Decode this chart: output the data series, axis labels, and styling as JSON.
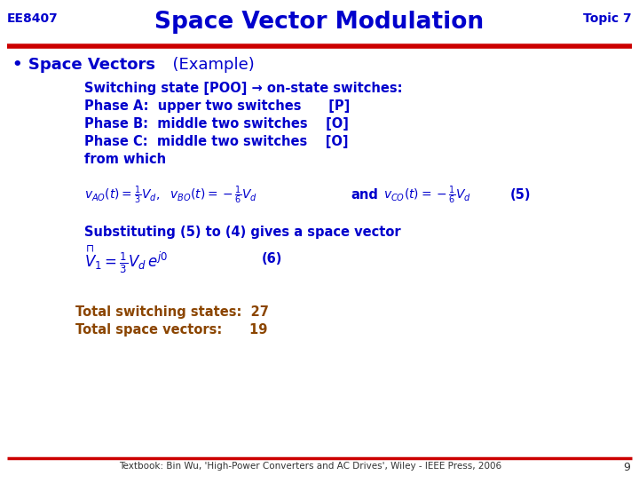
{
  "title": "Space Vector Modulation",
  "header_left": "EE8407",
  "header_right": "Topic 7",
  "title_color": "#0000CC",
  "header_color": "#0000CC",
  "red_line_color": "#CC0000",
  "bullet_text": "Space Vectors",
  "bullet_example": "(Example)",
  "bullet_color": "#0000CC",
  "body_color": "#0000CC",
  "brown_color": "#8B4500",
  "line1": "Switching state [POO] → on-state switches:",
  "line2": "Phase A:  upper two switches      [P]",
  "line3": "Phase B:  middle two switches    [O]",
  "line4": "Phase C:  middle two switches    [O]",
  "line5": "from which",
  "subst_line": "Substituting (5) to (4) gives a space vector",
  "total1": "Total switching states:  27",
  "total2": "Total space vectors:      19",
  "footer": "Textbook: Bin Wu, 'High-Power Converters and AC Drives', Wiley - IEEE Press, 2006",
  "page_num": "9",
  "bg_color": "#FFFFFF"
}
